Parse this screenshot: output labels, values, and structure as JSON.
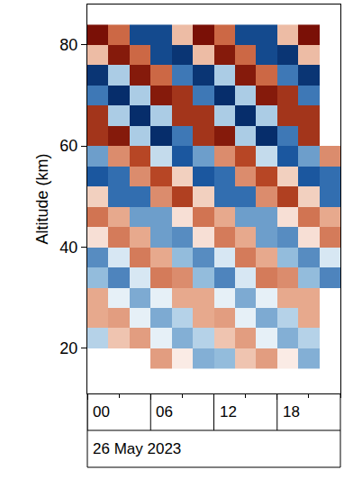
{
  "chart_data": {
    "type": "heatmap",
    "ylabel": "Altitude (km)",
    "xlabel": "26 May 2023",
    "x": [
      "2023-05-26 01:00",
      "2023-05-26 03:00",
      "2023-05-26 05:00",
      "2023-05-26 07:00",
      "2023-05-26 09:00",
      "2023-05-26 11:00",
      "2023-05-26 13:00",
      "2023-05-26 15:00",
      "2023-05-26 17:00",
      "2023-05-26 19:00",
      "2023-05-26 21:00",
      "2023-05-26 23:00"
    ],
    "y": [
      18,
      22,
      26,
      30,
      34,
      38,
      42,
      46,
      50,
      54,
      58,
      62,
      66,
      70,
      74,
      78,
      82
    ],
    "z": [
      [
        null,
        null,
        null,
        0.28,
        0.05,
        -0.28,
        -0.23,
        0.15,
        0.28,
        0.05,
        -0.28,
        null
      ],
      [
        -0.15,
        0.15,
        0.28,
        -0.05,
        -0.28,
        -0.15,
        0.15,
        0.28,
        -0.05,
        -0.28,
        -0.15,
        null
      ],
      [
        0.23,
        0.28,
        -0.05,
        -0.3,
        -0.15,
        0.23,
        0.28,
        -0.05,
        -0.3,
        -0.15,
        0.23,
        null
      ],
      [
        0.23,
        -0.05,
        -0.3,
        -0.05,
        0.23,
        0.23,
        -0.05,
        -0.3,
        -0.05,
        0.23,
        0.23,
        null
      ],
      [
        -0.23,
        -0.45,
        -0.08,
        0.42,
        0.35,
        -0.23,
        -0.45,
        -0.08,
        0.42,
        0.35,
        -0.23,
        -0.45
      ],
      [
        -0.42,
        -0.08,
        0.42,
        0.23,
        -0.23,
        -0.42,
        -0.08,
        0.42,
        0.23,
        -0.23,
        -0.42,
        -0.08
      ],
      [
        0.08,
        0.42,
        0.23,
        -0.35,
        -0.42,
        0.08,
        0.42,
        0.23,
        -0.35,
        -0.42,
        0.08,
        0.42
      ],
      [
        0.45,
        0.23,
        -0.35,
        -0.35,
        0.08,
        0.45,
        0.23,
        -0.35,
        -0.35,
        0.08,
        0.45,
        0.23
      ],
      [
        0.12,
        -0.54,
        -0.54,
        0.35,
        0.7,
        0.12,
        -0.54,
        -0.54,
        0.35,
        0.7,
        0.12,
        -0.54
      ],
      [
        -0.66,
        -0.54,
        0.35,
        0.66,
        0.12,
        -0.66,
        -0.54,
        0.35,
        0.66,
        0.12,
        -0.66,
        -0.54
      ],
      [
        -0.35,
        0.35,
        0.66,
        -0.12,
        -0.66,
        -0.35,
        0.35,
        0.66,
        -0.12,
        -0.66,
        -0.35,
        0.35
      ],
      [
        0.77,
        0.94,
        -0.17,
        -1,
        -0.5,
        0.77,
        0.94,
        -0.17,
        -1,
        -0.5,
        0.77,
        null
      ],
      [
        0.77,
        -0.17,
        -1,
        -0.17,
        0.77,
        0.77,
        -0.17,
        -1,
        -0.17,
        0.77,
        0.77,
        null
      ],
      [
        -0.5,
        -1,
        -0.17,
        0.94,
        0.77,
        -0.5,
        -1,
        -0.17,
        0.94,
        0.77,
        -0.5,
        null
      ],
      [
        -0.94,
        -0.17,
        0.94,
        0.5,
        -0.5,
        -0.94,
        -0.17,
        0.94,
        0.5,
        -0.5,
        -0.94,
        null
      ],
      [
        0.17,
        0.94,
        0.5,
        -0.77,
        -0.94,
        0.17,
        0.94,
        0.5,
        -0.77,
        -0.94,
        0.17,
        null
      ],
      [
        1,
        0.5,
        -0.77,
        -0.77,
        0.17,
        1,
        0.5,
        -0.77,
        -0.77,
        0.17,
        1,
        null
      ]
    ],
    "zlim": [
      -1,
      1
    ],
    "xlim": [
      "2023-05-26 00:00",
      "2023-05-27 00:00"
    ],
    "xticks": [
      {
        "value": "2023-05-26 00:00",
        "label": "00"
      },
      {
        "value": "2023-05-26 06:00",
        "label": "06"
      },
      {
        "value": "2023-05-26 12:00",
        "label": "12"
      },
      {
        "value": "2023-05-26 18:00",
        "label": "18"
      }
    ],
    "ylim": [
      11,
      88
    ],
    "yticks": [
      20,
      40,
      60,
      80
    ]
  }
}
